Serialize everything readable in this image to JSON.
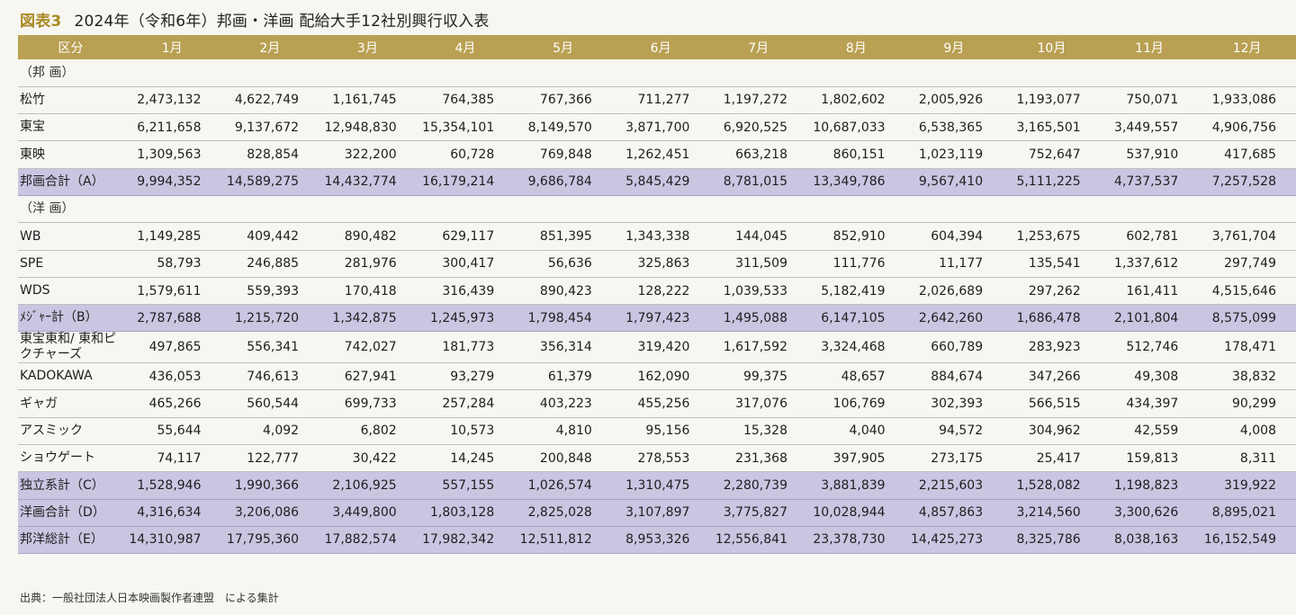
{
  "figure": {
    "label": "図表3",
    "title": "2024年（令和6年）邦画・洋画 配給大手12社別興行収入表"
  },
  "table": {
    "header": [
      "区分",
      "1月",
      "2月",
      "3月",
      "4月",
      "5月",
      "6月",
      "7月",
      "8月",
      "9月",
      "10月",
      "11月",
      "12月"
    ],
    "rows": [
      {
        "type": "section",
        "label": "（邦 画）",
        "values": []
      },
      {
        "type": "data",
        "label": "松竹",
        "values": [
          "2,473,132",
          "4,622,749",
          "1,161,745",
          "764,385",
          "767,366",
          "711,277",
          "1,197,272",
          "1,802,602",
          "2,005,926",
          "1,193,077",
          "750,071",
          "1,933,086"
        ]
      },
      {
        "type": "data",
        "label": "東宝",
        "values": [
          "6,211,658",
          "9,137,672",
          "12,948,830",
          "15,354,101",
          "8,149,570",
          "3,871,700",
          "6,920,525",
          "10,687,033",
          "6,538,365",
          "3,165,501",
          "3,449,557",
          "4,906,756"
        ]
      },
      {
        "type": "data",
        "label": "東映",
        "values": [
          "1,309,563",
          "828,854",
          "322,200",
          "60,728",
          "769,848",
          "1,262,451",
          "663,218",
          "860,151",
          "1,023,119",
          "752,647",
          "537,910",
          "417,685"
        ]
      },
      {
        "type": "subtotal",
        "label": "邦画合計（A）",
        "values": [
          "9,994,352",
          "14,589,275",
          "14,432,774",
          "16,179,214",
          "9,686,784",
          "5,845,429",
          "8,781,015",
          "13,349,786",
          "9,567,410",
          "5,111,225",
          "4,737,537",
          "7,257,528"
        ]
      },
      {
        "type": "section",
        "label": "（洋 画）",
        "values": []
      },
      {
        "type": "data",
        "label": "WB",
        "values": [
          "1,149,285",
          "409,442",
          "890,482",
          "629,117",
          "851,395",
          "1,343,338",
          "144,045",
          "852,910",
          "604,394",
          "1,253,675",
          "602,781",
          "3,761,704"
        ]
      },
      {
        "type": "data",
        "label": "SPE",
        "values": [
          "58,793",
          "246,885",
          "281,976",
          "300,417",
          "56,636",
          "325,863",
          "311,509",
          "111,776",
          "11,177",
          "135,541",
          "1,337,612",
          "297,749"
        ]
      },
      {
        "type": "data",
        "label": "WDS",
        "values": [
          "1,579,611",
          "559,393",
          "170,418",
          "316,439",
          "890,423",
          "128,222",
          "1,039,533",
          "5,182,419",
          "2,026,689",
          "297,262",
          "161,411",
          "4,515,646"
        ]
      },
      {
        "type": "subtotal",
        "label": "ﾒｼﾞｬｰ計（B）",
        "values": [
          "2,787,688",
          "1,215,720",
          "1,342,875",
          "1,245,973",
          "1,798,454",
          "1,797,423",
          "1,495,088",
          "6,147,105",
          "2,642,260",
          "1,686,478",
          "2,101,804",
          "8,575,099"
        ]
      },
      {
        "type": "data",
        "label": "東宝東和/ 東和ピクチャーズ",
        "values": [
          "497,865",
          "556,341",
          "742,027",
          "181,773",
          "356,314",
          "319,420",
          "1,617,592",
          "3,324,468",
          "660,789",
          "283,923",
          "512,746",
          "178,471"
        ]
      },
      {
        "type": "data",
        "label": "KADOKAWA",
        "values": [
          "436,053",
          "746,613",
          "627,941",
          "93,279",
          "61,379",
          "162,090",
          "99,375",
          "48,657",
          "884,674",
          "347,266",
          "49,308",
          "38,832"
        ]
      },
      {
        "type": "data",
        "label": "ギャガ",
        "values": [
          "465,266",
          "560,544",
          "699,733",
          "257,284",
          "403,223",
          "455,256",
          "317,076",
          "106,769",
          "302,393",
          "566,515",
          "434,397",
          "90,299"
        ]
      },
      {
        "type": "data",
        "label": "アスミック",
        "values": [
          "55,644",
          "4,092",
          "6,802",
          "10,573",
          "4,810",
          "95,156",
          "15,328",
          "4,040",
          "94,572",
          "304,962",
          "42,559",
          "4,008"
        ]
      },
      {
        "type": "data",
        "label": "ショウゲート",
        "values": [
          "74,117",
          "122,777",
          "30,422",
          "14,245",
          "200,848",
          "278,553",
          "231,368",
          "397,905",
          "273,175",
          "25,417",
          "159,813",
          "8,311"
        ]
      },
      {
        "type": "subtotal",
        "label": "独立系計（C）",
        "values": [
          "1,528,946",
          "1,990,366",
          "2,106,925",
          "557,155",
          "1,026,574",
          "1,310,475",
          "2,280,739",
          "3,881,839",
          "2,215,603",
          "1,528,082",
          "1,198,823",
          "319,922"
        ]
      },
      {
        "type": "subtotal",
        "label": "洋画合計（D）",
        "values": [
          "4,316,634",
          "3,206,086",
          "3,449,800",
          "1,803,128",
          "2,825,028",
          "3,107,897",
          "3,775,827",
          "10,028,944",
          "4,857,863",
          "3,214,560",
          "3,300,626",
          "8,895,021"
        ]
      },
      {
        "type": "subtotal",
        "label": "邦洋総計（E）",
        "values": [
          "14,310,987",
          "17,795,360",
          "17,882,574",
          "17,982,342",
          "12,511,812",
          "8,953,326",
          "12,556,841",
          "23,378,730",
          "14,425,273",
          "8,325,786",
          "8,038,163",
          "16,152,549"
        ]
      }
    ]
  },
  "source": "出典：一般社団法人日本映画製作者連盟　による集計",
  "colors": {
    "header_bg": "#b9a052",
    "subtotal_bg": "#cbc5e2",
    "figure_label": "#a88a24"
  }
}
